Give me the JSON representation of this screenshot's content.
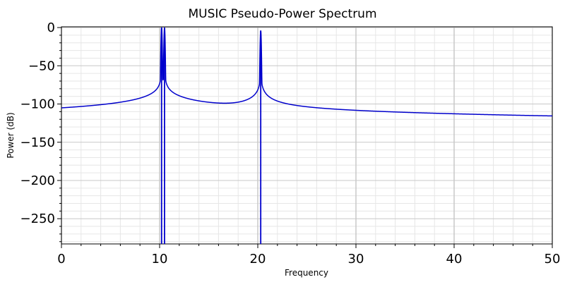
{
  "chart_data": {
    "type": "line",
    "title": "MUSIC Pseudo-Power Spectrum",
    "xlabel": "Frequency",
    "ylabel": "Power (dB)",
    "xlim": [
      0,
      50
    ],
    "ylim": [
      -283,
      1
    ],
    "x_ticks": [
      0,
      10,
      20,
      30,
      40,
      50
    ],
    "y_ticks": [
      0,
      -50,
      -100,
      -150,
      -200,
      -250
    ],
    "grid": true,
    "legend": "none",
    "series": [
      {
        "color": "#0000cc",
        "baseline": -283,
        "peaks": [
          {
            "x": 10.2,
            "y": 0
          },
          {
            "x": 10.5,
            "y": 0
          },
          {
            "x": 20.3,
            "y": -4
          }
        ]
      }
    ]
  },
  "colors": {
    "line": "#0000cc",
    "grid_major": "#c8c8c8",
    "grid_minor": "#e6e6e6",
    "axis": "#000000"
  }
}
